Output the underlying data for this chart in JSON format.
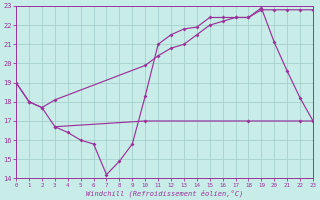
{
  "background_color": "#c8ece8",
  "grid_color": "#a0ccc8",
  "line_color": "#993399",
  "spine_color": "#993399",
  "xlim": [
    0,
    23
  ],
  "ylim": [
    14,
    23
  ],
  "xticks": [
    0,
    1,
    2,
    3,
    4,
    5,
    6,
    7,
    8,
    9,
    10,
    11,
    12,
    13,
    14,
    15,
    16,
    17,
    18,
    19,
    20,
    21,
    22,
    23
  ],
  "yticks": [
    14,
    15,
    16,
    17,
    18,
    19,
    20,
    21,
    22,
    23
  ],
  "xlabel": "Windchill (Refroidissement éolien,°C)",
  "line1_x": [
    0,
    1,
    2,
    3,
    4,
    5,
    6,
    7,
    8,
    9,
    10,
    11,
    12,
    13,
    14,
    15,
    16,
    17,
    18,
    19,
    20,
    21,
    22,
    23
  ],
  "line1_y": [
    19,
    18,
    17.7,
    16.7,
    16.4,
    16.0,
    15.8,
    14.2,
    14.9,
    15.8,
    18.3,
    21.0,
    21.5,
    21.8,
    21.9,
    22.4,
    22.4,
    22.4,
    22.4,
    22.9,
    21.1,
    19.6,
    18.2,
    17.0
  ],
  "line2_x": [
    0,
    1,
    2,
    3,
    10,
    11,
    12,
    13,
    14,
    15,
    16,
    17,
    18,
    19,
    20,
    21,
    22,
    23
  ],
  "line2_y": [
    19,
    18,
    17.7,
    18.1,
    19.9,
    20.4,
    20.8,
    21.0,
    21.5,
    22.0,
    22.2,
    22.4,
    22.4,
    22.8,
    22.8,
    22.8,
    22.8,
    22.8
  ],
  "line3_x": [
    3,
    10,
    18,
    22,
    23
  ],
  "line3_y": [
    16.7,
    17.0,
    17.0,
    17.0,
    17.0
  ]
}
